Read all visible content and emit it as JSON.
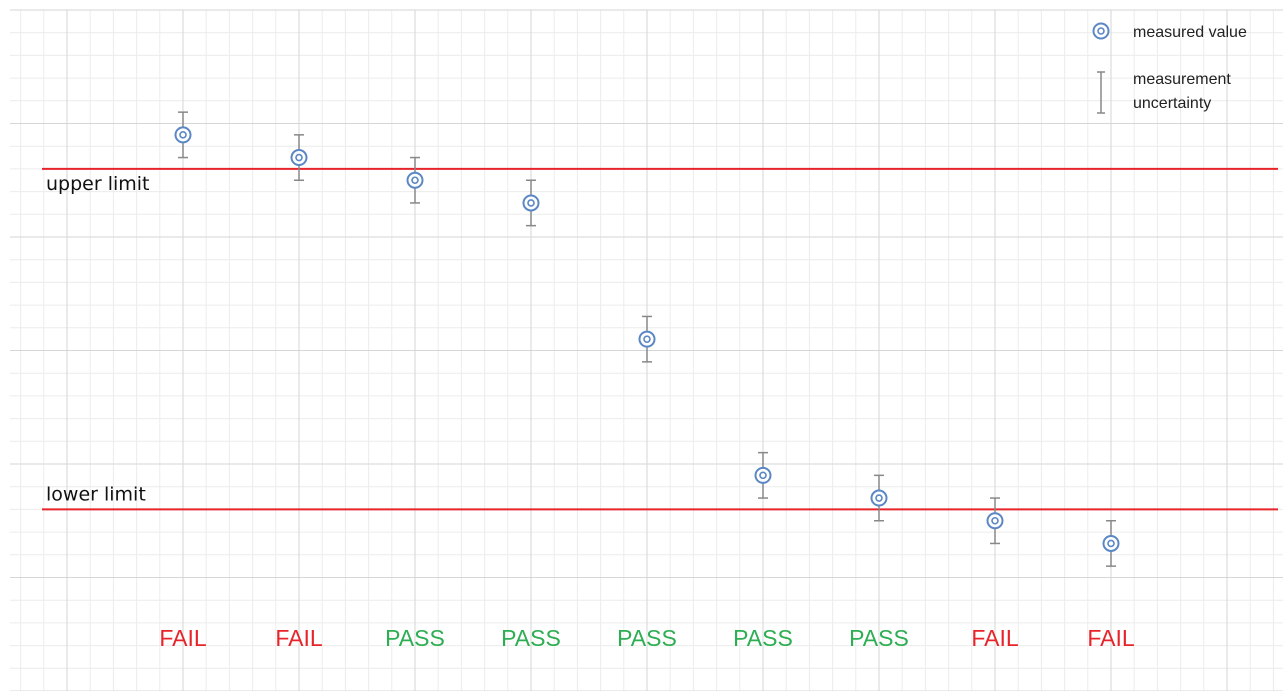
{
  "chart_data": {
    "type": "scatter",
    "x": [
      1,
      2,
      3,
      4,
      5,
      6,
      7,
      8,
      9
    ],
    "values": [
      8.9,
      8.7,
      8.5,
      8.3,
      7.1,
      5.9,
      5.7,
      5.5,
      5.3
    ],
    "uncertainty": [
      0.2,
      0.2,
      0.2,
      0.2,
      0.2,
      0.2,
      0.2,
      0.2,
      0.2
    ],
    "upper_limit": 8.6,
    "lower_limit": 5.6,
    "ylim": [
      4.0,
      10.0
    ],
    "xlim": [
      0,
      10.5
    ],
    "grid": true,
    "legend_position": "top-right",
    "colors": {
      "marker": "#5b87c4",
      "errorbar": "#888888",
      "limit_line": "#e8242b",
      "pass": "#2eae52",
      "fail": "#e8242b",
      "grid_major": "#d6d6d6",
      "grid_minor": "#ececec"
    },
    "annotations": {
      "upper_limit_label": "upper limit",
      "lower_limit_label": "lower limit"
    },
    "verdicts": [
      "FAIL",
      "FAIL",
      "PASS",
      "PASS",
      "PASS",
      "PASS",
      "PASS",
      "FAIL",
      "FAIL"
    ],
    "legend": {
      "marker_label": "measured value",
      "errorbar_label_line1": "measurement",
      "errorbar_label_line2": "uncertainty"
    }
  }
}
